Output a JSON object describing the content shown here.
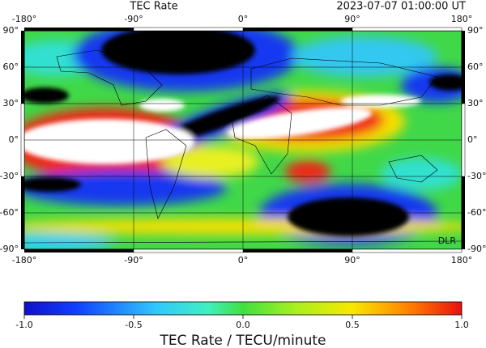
{
  "header": {
    "title": "TEC Rate",
    "timestamp": "2023-07-07  01:00:00 UT"
  },
  "map": {
    "lon_ticks": [
      {
        "value": -180,
        "label": "-180°"
      },
      {
        "value": -90,
        "label": "-90°"
      },
      {
        "value": 0,
        "label": "0°"
      },
      {
        "value": 90,
        "label": "90°"
      },
      {
        "value": 180,
        "label": "180°"
      }
    ],
    "lat_ticks": [
      {
        "value": 90,
        "label": "90°"
      },
      {
        "value": 60,
        "label": "60°"
      },
      {
        "value": 30,
        "label": "30°"
      },
      {
        "value": 0,
        "label": "0°"
      },
      {
        "value": -30,
        "label": "-30°"
      },
      {
        "value": -60,
        "label": "-60°"
      },
      {
        "value": -90,
        "label": "-90°"
      }
    ],
    "credit": "DLR"
  },
  "colorbar": {
    "ticks": [
      {
        "value": -1,
        "label": "-1.0"
      },
      {
        "value": -0.5,
        "label": "-0.5"
      },
      {
        "value": 0,
        "label": "0.0"
      },
      {
        "value": 0.5,
        "label": "0.5"
      },
      {
        "value": 1,
        "label": "1.0"
      }
    ],
    "label": "TEC Rate / TECU/minute"
  }
}
